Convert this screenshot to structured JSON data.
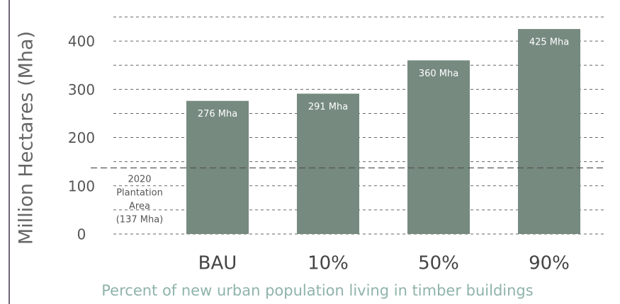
{
  "chart_data": {
    "type": "bar",
    "ylabel": "Million Hectares (Mha)",
    "xlabel": "Percent of new urban population living in timber buildings",
    "categories": [
      "BAU",
      "10%",
      "50%",
      "90%"
    ],
    "values": [
      276,
      291,
      360,
      425
    ],
    "value_labels": [
      "276 Mha",
      "291 Mha",
      "360 Mha",
      "425 Mha"
    ],
    "color": "#768a80",
    "ylim": [
      0,
      450
    ],
    "yticks": [
      0,
      100,
      200,
      300,
      400
    ],
    "minor_yticks": [
      50,
      150,
      250,
      350,
      450
    ],
    "grid": true,
    "reference_line": {
      "value": 137,
      "label": [
        "2020",
        "Plantation",
        "Area",
        "(137 Mha)"
      ]
    }
  }
}
